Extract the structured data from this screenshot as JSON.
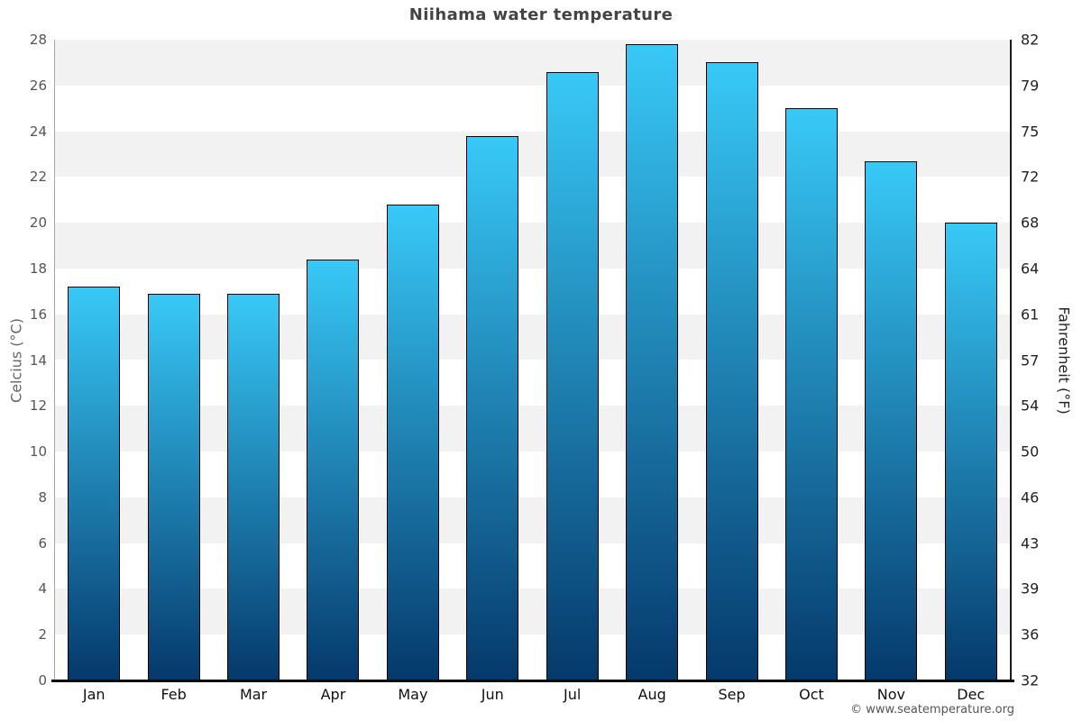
{
  "page": {
    "title": "Niihama water temperature",
    "footer": "© www.seatemperature.org"
  },
  "chart_data": {
    "type": "bar",
    "title": "Niihama water temperature",
    "categories": [
      "Jan",
      "Feb",
      "Mar",
      "Apr",
      "May",
      "Jun",
      "Jul",
      "Aug",
      "Sep",
      "Oct",
      "Nov",
      "Dec"
    ],
    "values": [
      17.2,
      16.9,
      16.9,
      18.4,
      20.8,
      23.8,
      26.6,
      27.8,
      27.0,
      25.0,
      22.7,
      20.0
    ],
    "ylabel_left": "Celcius (°C)",
    "ylabel_right": "Fahrenheit (°F)",
    "ylim": [
      0,
      28
    ],
    "y_tick_step": 2,
    "y_left_tick_labels": [
      "0",
      "2",
      "4",
      "6",
      "8",
      "10",
      "12",
      "14",
      "16",
      "18",
      "20",
      "22",
      "24",
      "26",
      "28"
    ],
    "y_right_tick_labels": [
      "32",
      "36",
      "39",
      "43",
      "46",
      "50",
      "54",
      "57",
      "61",
      "64",
      "68",
      "72",
      "75",
      "79",
      "82"
    ],
    "legend": "none",
    "grid": "alternating horizontal bands every 2°C, gray topmost band",
    "colors": {
      "bar_top": "#38c9f7",
      "bar_bottom": "#05396b",
      "bar_border": "#000000",
      "band_gray": "#f2f2f2",
      "band_white": "#ffffff",
      "axis_left_line": "#a6a6a6",
      "axis_dark_line": "#1a1a1a",
      "title_color": "#444444",
      "tick_color_left": "#555555",
      "tick_color_right": "#222222",
      "month_label_color": "#111111",
      "footer_color": "#555555"
    }
  }
}
